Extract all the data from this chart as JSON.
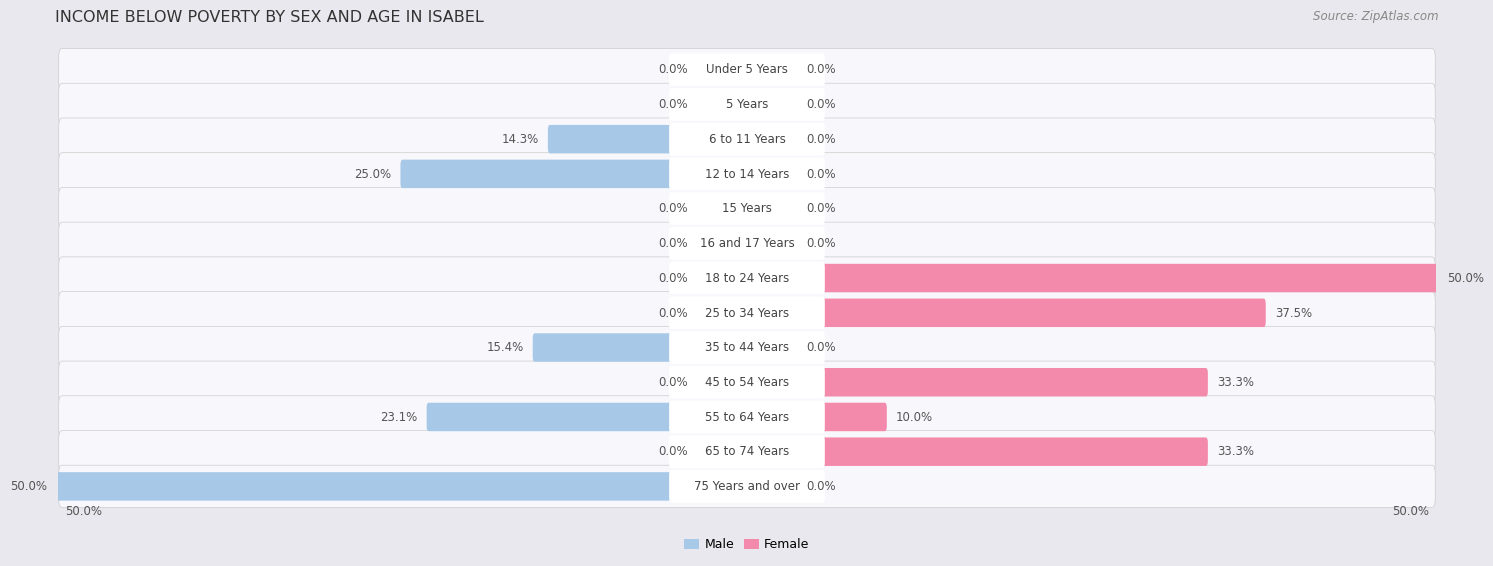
{
  "title": "INCOME BELOW POVERTY BY SEX AND AGE IN ISABEL",
  "source": "Source: ZipAtlas.com",
  "categories": [
    "Under 5 Years",
    "5 Years",
    "6 to 11 Years",
    "12 to 14 Years",
    "15 Years",
    "16 and 17 Years",
    "18 to 24 Years",
    "25 to 34 Years",
    "35 to 44 Years",
    "45 to 54 Years",
    "55 to 64 Years",
    "65 to 74 Years",
    "75 Years and over"
  ],
  "male": [
    0.0,
    0.0,
    14.3,
    25.0,
    0.0,
    0.0,
    0.0,
    0.0,
    15.4,
    0.0,
    23.1,
    0.0,
    50.0
  ],
  "female": [
    0.0,
    0.0,
    0.0,
    0.0,
    0.0,
    0.0,
    50.0,
    37.5,
    0.0,
    33.3,
    10.0,
    33.3,
    0.0
  ],
  "male_color": "#a8c8e8",
  "female_color": "#f48aab",
  "male_label": "Male",
  "female_label": "Female",
  "xlim": 50.0,
  "bg_color": "#e8e8ee",
  "row_bg_color": "#f8f8fc",
  "title_fontsize": 11.5,
  "label_fontsize": 8.5,
  "source_fontsize": 8.5,
  "value_color": "#555555"
}
